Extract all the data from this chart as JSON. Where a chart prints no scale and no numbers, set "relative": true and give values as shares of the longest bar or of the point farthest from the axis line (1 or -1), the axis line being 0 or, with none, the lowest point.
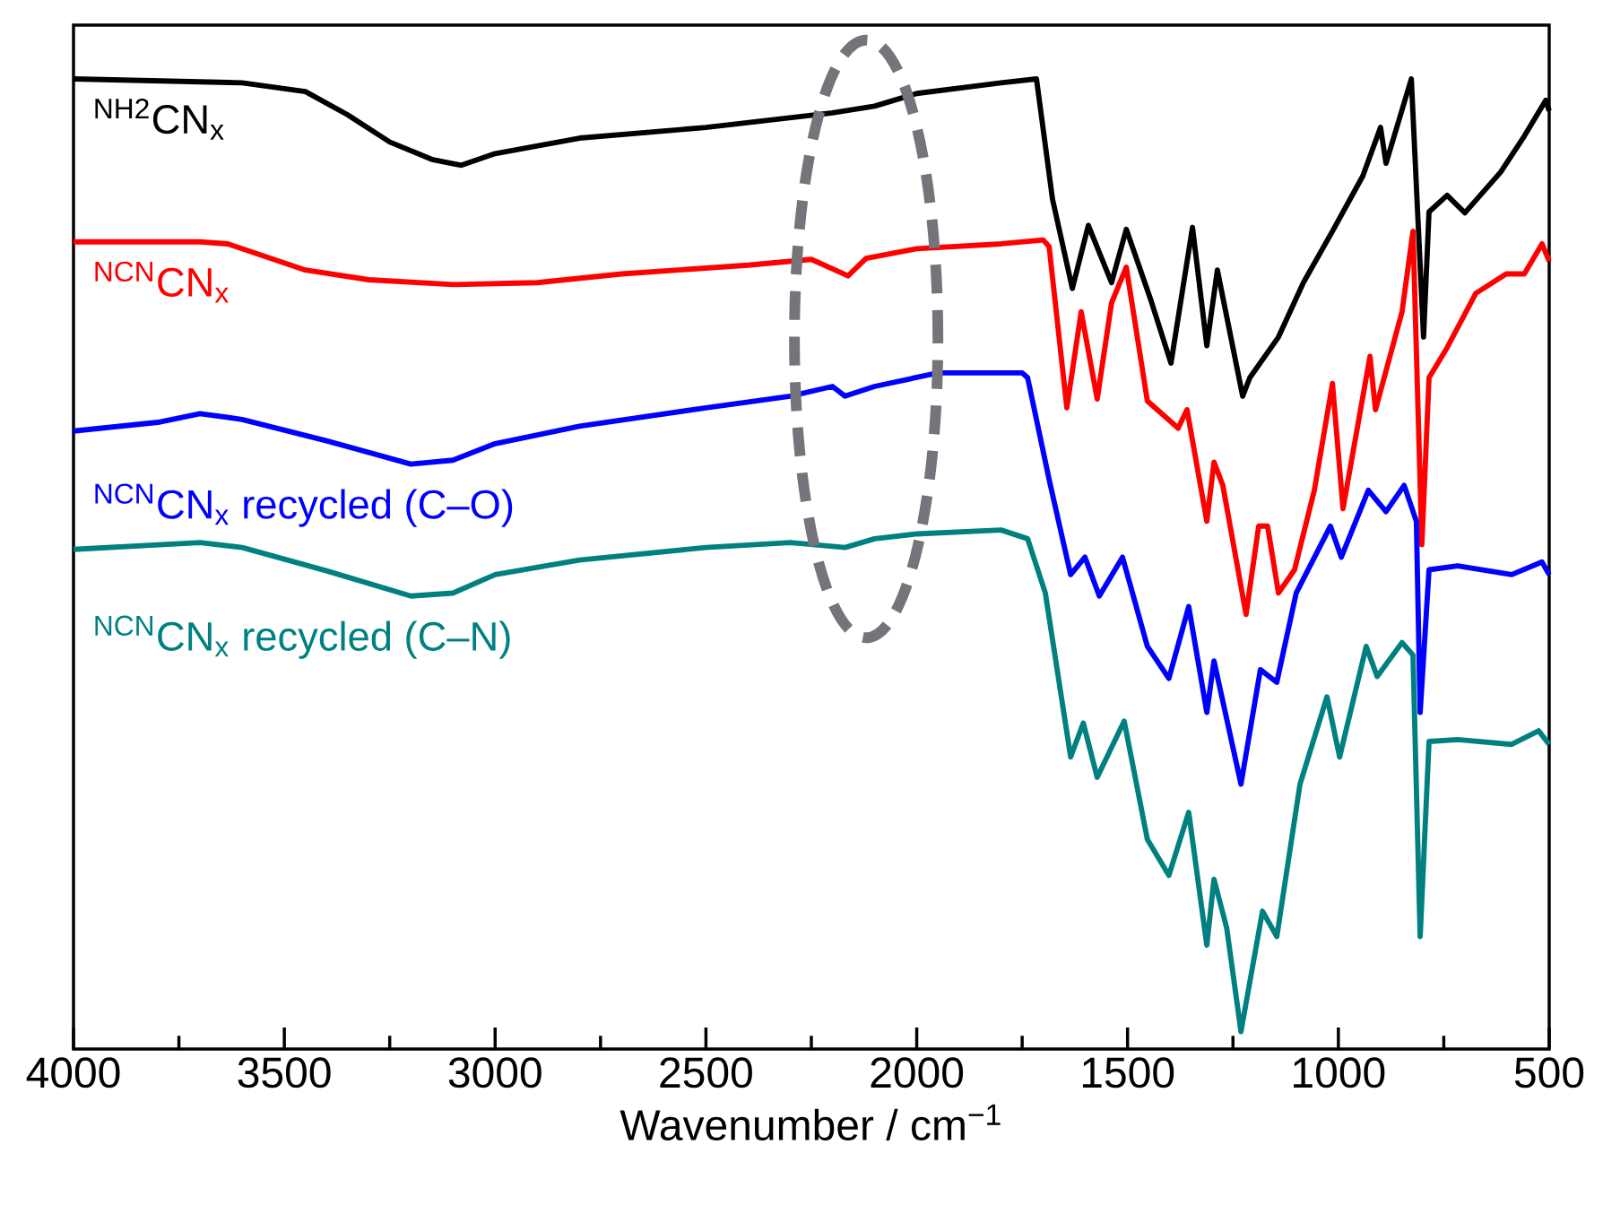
{
  "chart_data": {
    "type": "line",
    "relative": true,
    "xlabel": "Wavenumber / cm$^{−1}$",
    "xlim": [
      4000,
      500
    ],
    "xticks": [
      4000,
      {
        "value": 3750,
        "label": null
      },
      3500,
      {
        "value": 3250,
        "label": null
      },
      3000,
      {
        "value": 2750,
        "label": null
      },
      2500,
      {
        "value": 2250,
        "label": null
      },
      2000,
      {
        "value": 1750,
        "label": null
      },
      1500,
      {
        "value": 1250,
        "label": null
      },
      1000,
      {
        "value": 750,
        "label": null
      },
      500
    ],
    "legend": false,
    "grid": false,
    "marker": "none",
    "line_style": "solid",
    "series": [
      {
        "name": "$^{NH2}$CN$_{x}$",
        "color": "#000000",
        "x": [
          4000,
          3600,
          3450,
          3350,
          3250,
          3150,
          3080,
          3000,
          2800,
          2500,
          2200,
          2100,
          2000,
          1800,
          1716,
          1678,
          1631,
          1593,
          1538,
          1503,
          1444,
          1397,
          1346,
          1312,
          1287,
          1227,
          1210,
          1142,
          1083,
          1014,
          942,
          900,
          887,
          827,
          798,
          785,
          742,
          700,
          615,
          559,
          508,
          500
        ],
        "values": [
          1.0,
          0.996,
          0.987,
          0.963,
          0.935,
          0.917,
          0.911,
          0.923,
          0.939,
          0.95,
          0.965,
          0.972,
          0.985,
          0.996,
          1.0,
          0.876,
          0.784,
          0.849,
          0.79,
          0.845,
          0.771,
          0.707,
          0.847,
          0.725,
          0.803,
          0.673,
          0.692,
          0.734,
          0.79,
          0.843,
          0.9,
          0.95,
          0.913,
          1.0,
          0.734,
          0.863,
          0.88,
          0.862,
          0.904,
          0.941,
          0.978,
          0.967
        ]
      },
      {
        "name": "$^{NCN}$CN$_{x}$",
        "color": "#ff0000",
        "x": [
          4000,
          3700,
          3634,
          3450,
          3300,
          3100,
          2900,
          2700,
          2400,
          2250,
          2163,
          2120,
          2000,
          1800,
          1700,
          1686,
          1644,
          1610,
          1572,
          1538,
          1503,
          1453,
          1380,
          1359,
          1312,
          1295,
          1274,
          1219,
          1189,
          1168,
          1142,
          1104,
          1057,
          1014,
          989,
          925,
          912,
          849,
          823,
          802,
          785,
          742,
          674,
          602,
          559,
          517,
          500
        ],
        "values": [
          0.832,
          0.832,
          0.83,
          0.803,
          0.793,
          0.788,
          0.79,
          0.799,
          0.808,
          0.814,
          0.797,
          0.815,
          0.825,
          0.83,
          0.834,
          0.827,
          0.661,
          0.76,
          0.67,
          0.769,
          0.806,
          0.668,
          0.64,
          0.659,
          0.544,
          0.605,
          0.581,
          0.448,
          0.539,
          0.539,
          0.47,
          0.494,
          0.576,
          0.686,
          0.557,
          0.714,
          0.659,
          0.76,
          0.843,
          0.52,
          0.692,
          0.723,
          0.779,
          0.799,
          0.799,
          0.83,
          0.812
        ]
      },
      {
        "name": "$^{NCN}$CN$_{x}$ recycled (C–O)",
        "color": "#0000ff",
        "x": [
          4000,
          3800,
          3700,
          3600,
          3400,
          3200,
          3100,
          3000,
          2800,
          2500,
          2300,
          2200,
          2170,
          2100,
          1950,
          1750,
          1737,
          1686,
          1635,
          1601,
          1567,
          1512,
          1453,
          1402,
          1355,
          1312,
          1295,
          1231,
          1185,
          1146,
          1100,
          1019,
          993,
          929,
          887,
          844,
          815,
          806,
          785,
          717,
          589,
          517,
          500
        ],
        "values": [
          0.637,
          0.646,
          0.655,
          0.649,
          0.627,
          0.603,
          0.607,
          0.624,
          0.642,
          0.661,
          0.673,
          0.683,
          0.673,
          0.683,
          0.697,
          0.697,
          0.692,
          0.587,
          0.489,
          0.507,
          0.467,
          0.507,
          0.415,
          0.382,
          0.456,
          0.347,
          0.4,
          0.273,
          0.391,
          0.378,
          0.47,
          0.539,
          0.507,
          0.576,
          0.554,
          0.581,
          0.544,
          0.347,
          0.494,
          0.498,
          0.489,
          0.502,
          0.489
        ]
      },
      {
        "name": "$^{NCN}$CN$_{x}$ recycled (C–N)",
        "color": "#008080",
        "x": [
          4000,
          3700,
          3600,
          3400,
          3200,
          3100,
          3000,
          2800,
          2500,
          2300,
          2170,
          2100,
          2000,
          1800,
          1737,
          1695,
          1635,
          1605,
          1572,
          1508,
          1453,
          1402,
          1355,
          1312,
          1295,
          1265,
          1231,
          1180,
          1146,
          1091,
          1027,
          997,
          934,
          908,
          849,
          823,
          806,
          785,
          717,
          589,
          525,
          500
        ],
        "values": [
          0.515,
          0.522,
          0.517,
          0.493,
          0.467,
          0.47,
          0.489,
          0.504,
          0.517,
          0.522,
          0.517,
          0.526,
          0.531,
          0.535,
          0.526,
          0.47,
          0.301,
          0.336,
          0.28,
          0.338,
          0.216,
          0.179,
          0.244,
          0.107,
          0.175,
          0.125,
          0.018,
          0.142,
          0.116,
          0.273,
          0.363,
          0.301,
          0.415,
          0.384,
          0.419,
          0.406,
          0.116,
          0.317,
          0.319,
          0.314,
          0.328,
          0.314
        ]
      }
    ]
  }
}
